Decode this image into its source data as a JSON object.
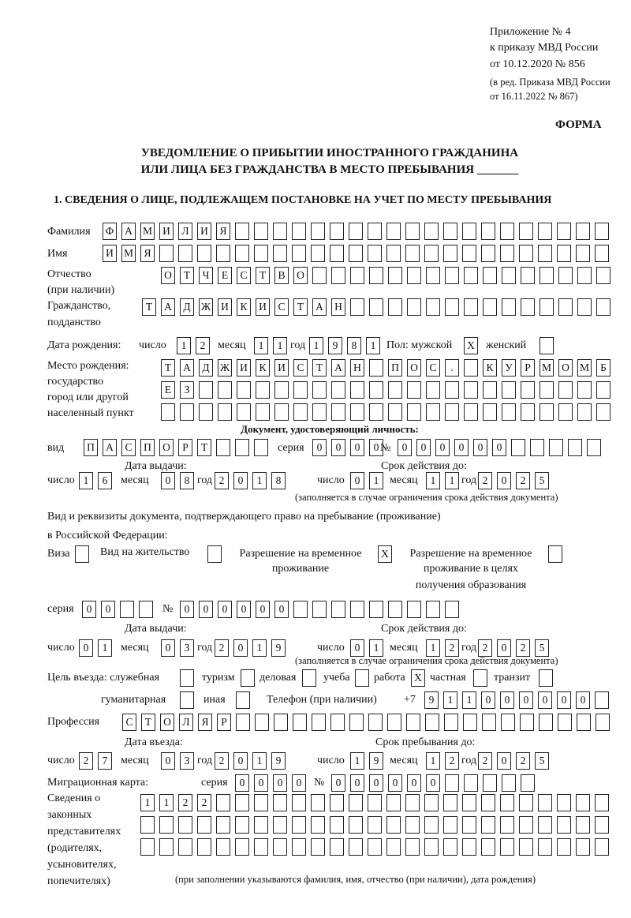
{
  "header": {
    "annex": "Приложение № 4",
    "order": "к приказу МВД России",
    "order_date": "от 10.12.2020 № 856",
    "edition": "(в ред. Приказа МВД России",
    "edition_date": "от 16.11.2022 № 867)",
    "form_label": "ФОРМА",
    "title_line1": "УВЕДОМЛЕНИЕ О ПРИБЫТИИ ИНОСТРАННОГО ГРАЖДАНИНА",
    "title_line2": "ИЛИ ЛИЦА БЕЗ ГРАЖДАНСТВА В МЕСТО ПРЕБЫВАНИЯ _______",
    "section1": "1. СВЕДЕНИЯ О ЛИЦЕ, ПОДЛЕЖАЩЕМ ПОСТАНОВКЕ НА УЧЕТ ПО МЕСТУ ПРЕБЫВАНИЯ"
  },
  "labels": {
    "surname": "Фамилия",
    "name": "Имя",
    "patronymic": "Отчество",
    "patronymic_note": "(при наличии)",
    "citizenship": "Гражданство,",
    "citizenship2": "подданство",
    "dob": "Дата рождения:",
    "day": "число",
    "month": "месяц",
    "year": "год",
    "sex_male": "Пол: мужской",
    "sex_female": "женский",
    "birthplace1": "Место рождения:",
    "birthplace2": "государство",
    "birthplace3": "город или другой",
    "birthplace4": "населенный пункт",
    "id_doc": "Документ, удостоверяющий личность:",
    "kind": "вид",
    "series": "серия",
    "number": "№",
    "issue_date": "Дата выдачи:",
    "valid_until": "Срок действия до:",
    "validity_note": "(заполняется в случае ограничения срока действия документа)",
    "stay_doc1": "Вид и реквизиты документа, подтверждающего право на пребывание (проживание)",
    "stay_doc2": "в Российской Федерации:",
    "visa": "Виза",
    "residence": "Вид на жительство",
    "trp1": "Разрешение на временное",
    "trp2": "проживание",
    "trpe1": "Разрешение на временное",
    "trpe2": "проживание в целях",
    "trpe3": "получения образования",
    "purpose": "Цель въезда: служебная",
    "tourism": "туризм",
    "business": "деловая",
    "study": "учеба",
    "work": "работа",
    "private": "частная",
    "transit": "транзит",
    "humanitarian": "гуманитарная",
    "other": "иная",
    "phone": "Телефон (при наличии)",
    "phone_prefix": "+7",
    "profession": "Профессия",
    "entry_date": "Дата въезда:",
    "stay_until": "Срок пребывания до:",
    "migration_card": "Миграционная карта:",
    "reps1": "Сведения о",
    "reps2": "законных",
    "reps3": "представителях",
    "reps4": "(родителях,",
    "reps5": "усыновителях,",
    "reps6": "попечителях)",
    "reps_note": "(при заполнении указываются фамилия, имя, отчество (при наличии), дата рождения)"
  },
  "person": {
    "surname": "ФАМИЛИЯ",
    "name": "ИМЯ",
    "patronymic": "ОТЧЕСТВО",
    "citizenship": "ТАДЖИКИСТАН",
    "dob_day": "12",
    "dob_month": "11",
    "dob_year": "1981",
    "sex_male": "X",
    "sex_female": "",
    "birthplace_row1": "ТАДЖИКИСТАН ПОС. КУРМОМБ",
    "birthplace_row2": "ЕЗ",
    "birthplace_row3": ""
  },
  "id_document": {
    "kind": "ПАСПОРТ",
    "series": "0000",
    "number": "000000",
    "issue_day": "16",
    "issue_month": "08",
    "issue_year": "2018",
    "valid_day": "01",
    "valid_month": "11",
    "valid_year": "2025"
  },
  "stay_document": {
    "visa": "",
    "residence_permit": "",
    "temp_residence": "X",
    "temp_residence_edu": "",
    "series": "00",
    "number": "000000",
    "issue_day": "01",
    "issue_month": "03",
    "issue_year": "2019",
    "valid_day": "01",
    "valid_month": "12",
    "valid_year": "2025"
  },
  "purpose": {
    "official": "",
    "tourism": "",
    "business": "",
    "study": "",
    "work": "X",
    "private": "",
    "transit": "",
    "humanitarian": "",
    "other": ""
  },
  "phone": "911000000",
  "profession": "СТОЛЯР",
  "entry": {
    "day": "27",
    "month": "03",
    "year": "2019",
    "stay_day": "19",
    "stay_month": "12",
    "stay_year": "2025"
  },
  "migration_card": {
    "series": "0000",
    "number": "000000"
  },
  "representatives": {
    "row1": "1122",
    "row2": "",
    "row3": ""
  }
}
